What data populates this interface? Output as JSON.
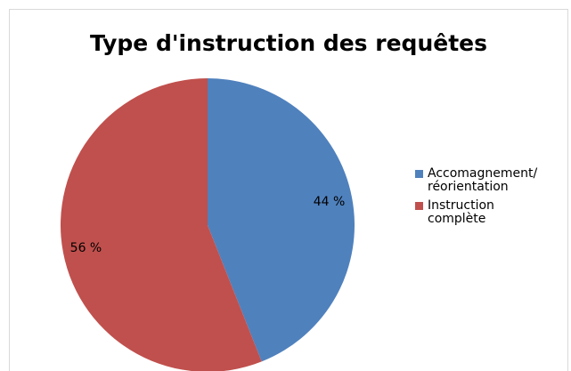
{
  "chart_data": {
    "type": "pie",
    "title": "Type d'instruction des requêtes",
    "categories": [
      "Accomagnement/ réorientation",
      "Instruction complète"
    ],
    "values": [
      44,
      56
    ],
    "value_labels": [
      "44 %",
      "56 %"
    ],
    "colors": [
      "#4f81bd",
      "#c0504d"
    ],
    "legend": "right"
  }
}
